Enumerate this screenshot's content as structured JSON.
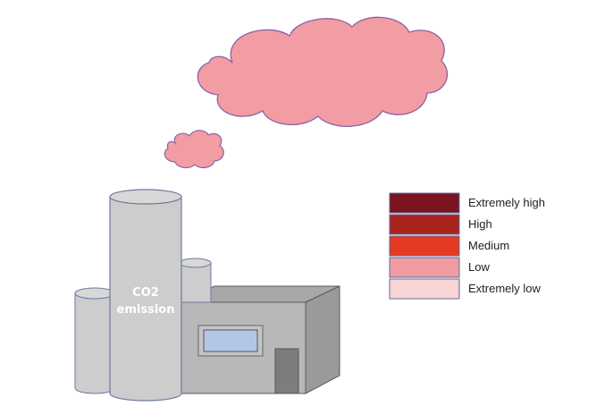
{
  "stack_label_line1": "CO2",
  "stack_label_line2": "emission",
  "legend": [
    {
      "label": "Extremely high",
      "color": "#7b1420"
    },
    {
      "label": "High",
      "color": "#a9231d"
    },
    {
      "label": "Medium",
      "color": "#e53a24"
    },
    {
      "label": "Low",
      "color": "#f09ba2"
    },
    {
      "label": "Extremely low",
      "color": "#f8d4d6"
    }
  ],
  "colors": {
    "cloud_fill": "#f29ca3",
    "cloud_stroke": "#8d62a5",
    "cylinder_fill": "#cdcdcd",
    "cylinder_stroke": "#6e7a9c",
    "building_front": "#b8b8b8",
    "building_side": "#9a9a9a",
    "window": "#b4c6e7",
    "door": "#7d7d7d"
  },
  "icons": {
    "cloud_large": "emission-cloud-large",
    "cloud_small": "emission-cloud-small",
    "factory": "factory-building"
  }
}
